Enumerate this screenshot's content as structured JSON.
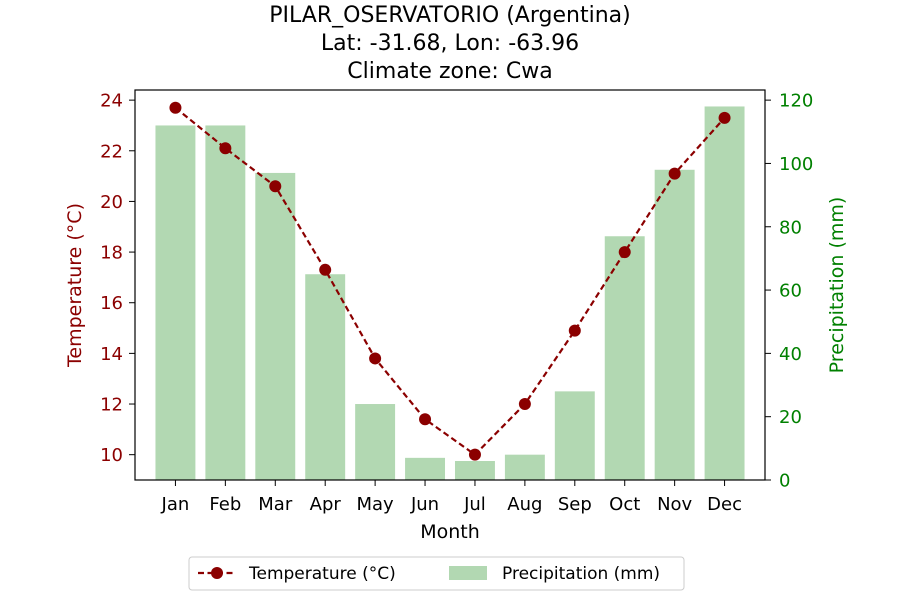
{
  "chart_data": {
    "type": "bar",
    "title_lines": [
      "PILAR_OSERVATORIO (Argentina)",
      "Lat: -31.68, Lon: -63.96",
      "Climate zone: Cwa"
    ],
    "xlabel": "Month",
    "ylabel_left": "Temperature (°C)",
    "ylabel_right": "Precipitation (mm)",
    "categories": [
      "Jan",
      "Feb",
      "Mar",
      "Apr",
      "May",
      "Jun",
      "Jul",
      "Aug",
      "Sep",
      "Oct",
      "Nov",
      "Dec"
    ],
    "series": [
      {
        "name": "Temperature (°C)",
        "type": "line",
        "axis": "left",
        "color": "#8b0000",
        "values": [
          23.7,
          22.1,
          20.6,
          17.3,
          13.8,
          11.4,
          10.0,
          12.0,
          14.9,
          18.0,
          21.1,
          23.3
        ]
      },
      {
        "name": "Precipitation (mm)",
        "type": "bar",
        "axis": "right",
        "color": "#b2d8b2",
        "values": [
          112,
          112,
          97,
          65,
          24,
          7,
          6,
          8,
          28,
          77,
          98,
          118
        ]
      }
    ],
    "ylim_left": [
      9,
      24.4
    ],
    "yticks_left": [
      "10",
      "12",
      "14",
      "16",
      "18",
      "20",
      "22",
      "24"
    ],
    "ylim_right": [
      0,
      123.2
    ],
    "yticks_right": [
      "0",
      "20",
      "40",
      "60",
      "80",
      "100",
      "120"
    ],
    "left_axis_color": "#8b0000",
    "right_axis_color": "#008000",
    "grid": false,
    "legend_position": "bottom-center"
  }
}
